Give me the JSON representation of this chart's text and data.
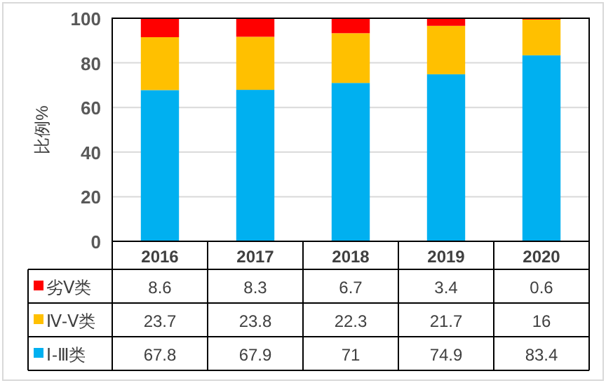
{
  "chart_data": {
    "type": "bar",
    "stacked": true,
    "ylabel": "比例%",
    "categories": [
      "2016",
      "2017",
      "2018",
      "2019",
      "2020"
    ],
    "series": [
      {
        "name": "Ⅰ-Ⅲ类",
        "color": "#00b0f0",
        "values": [
          67.8,
          67.9,
          71,
          74.9,
          83.4
        ]
      },
      {
        "name": "Ⅳ-Ⅴ类",
        "color": "#ffc000",
        "values": [
          23.7,
          23.8,
          22.3,
          21.7,
          16
        ]
      },
      {
        "name": "劣Ⅴ类",
        "color": "#ff0000",
        "values": [
          8.6,
          8.3,
          6.7,
          3.4,
          0.6
        ]
      }
    ],
    "ylim": [
      0,
      100
    ],
    "yticks": [
      0,
      20,
      40,
      60,
      80,
      100
    ],
    "grid": "y",
    "legend": "bottom",
    "data_labels": true
  }
}
